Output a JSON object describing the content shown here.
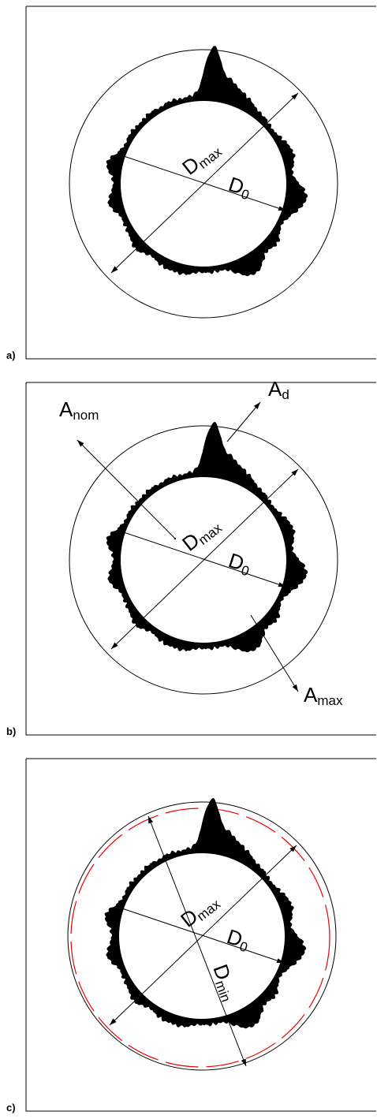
{
  "panels": [
    {
      "label": "a)",
      "annotations": [
        {
          "main": "D",
          "sub": "max"
        },
        {
          "main": "D",
          "sub": "0"
        }
      ]
    },
    {
      "label": "b)",
      "annotations": [
        {
          "main": "D",
          "sub": "max"
        },
        {
          "main": "D",
          "sub": "0"
        },
        {
          "main": "A",
          "sub": "nom"
        },
        {
          "main": "A",
          "sub": "d"
        },
        {
          "main": "A",
          "sub": "max"
        }
      ]
    },
    {
      "label": "c)",
      "annotations": [
        {
          "main": "D",
          "sub": "max"
        },
        {
          "main": "D",
          "sub": "0"
        },
        {
          "main": "D",
          "sub": "min"
        }
      ]
    }
  ]
}
